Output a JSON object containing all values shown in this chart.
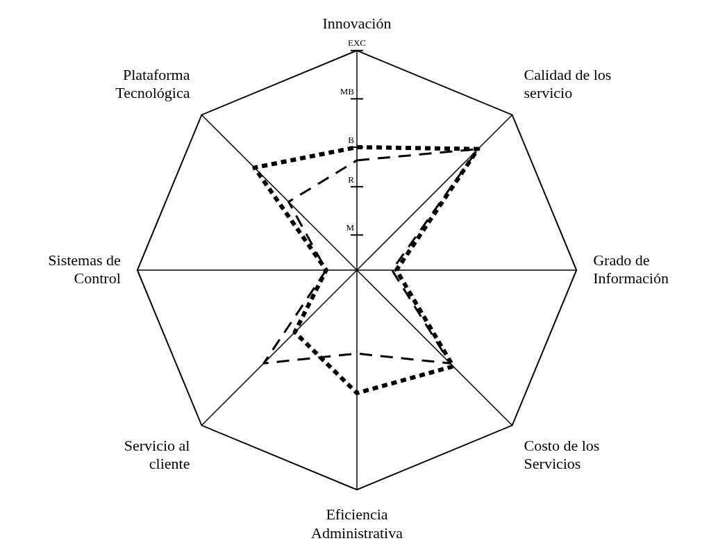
{
  "chart_data": {
    "type": "radar",
    "categories": [
      "Innovación",
      "Calidad de los\nservicio",
      "Grado de\nInformación",
      "Costo de los\nServicios",
      "Eficiencia\nAdministrativa",
      "Servicio al\ncliente",
      "Sistemas de\nControl",
      "Plataforma\nTecnológica"
    ],
    "series": [
      {
        "color": "#000000",
        "line_style": "dotted",
        "values": [
          2.8,
          3.9,
          0.9,
          3.1,
          2.8,
          2.0,
          0.7,
          3.3
        ]
      },
      {
        "color": "#000000",
        "line_style": "dashed",
        "values": [
          2.5,
          3.9,
          0.8,
          3.0,
          1.9,
          3.0,
          0.7,
          2.2
        ]
      }
    ],
    "ylim": [
      0,
      5
    ],
    "yticks": [
      {
        "value": 0.8,
        "label": "M"
      },
      {
        "value": 1.9,
        "label": "R"
      },
      {
        "value": 2.8,
        "label": "B"
      },
      {
        "value": 3.9,
        "label": "MB"
      },
      {
        "value": 5,
        "label": "EXC"
      }
    ],
    "grid": true,
    "legend": false,
    "marker": "none"
  }
}
